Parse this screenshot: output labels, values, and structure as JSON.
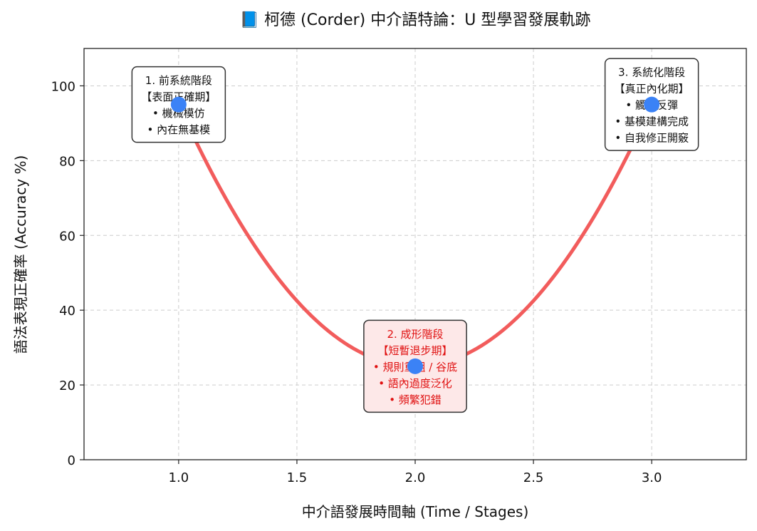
{
  "chart_data": {
    "type": "line",
    "title": "📘 柯德 (Corder) 中介語特論：U 型學習發展軌跡",
    "xlabel": "中介語發展時間軸 (Time / Stages)",
    "ylabel": "語法表現正確率 (Accuracy %)",
    "xlim": [
      0.6,
      3.4
    ],
    "ylim": [
      0,
      110
    ],
    "xticks": [
      1.0,
      1.5,
      2.0,
      2.5,
      3.0
    ],
    "xtick_labels": [
      "1.0",
      "1.5",
      "2.0",
      "2.5",
      "3.0"
    ],
    "yticks": [
      0,
      20,
      40,
      60,
      80,
      100
    ],
    "ytick_labels": [
      "0",
      "20",
      "40",
      "60",
      "80",
      "100"
    ],
    "grid": true,
    "grid_style": "dashed",
    "curve": {
      "x_range": [
        1.0,
        3.0
      ],
      "vertex": [
        2.0,
        25
      ],
      "endpoint_y": 95,
      "color": "#f25c5c"
    },
    "points": [
      {
        "x": 1.0,
        "y": 95
      },
      {
        "x": 2.0,
        "y": 25
      },
      {
        "x": 3.0,
        "y": 95
      }
    ],
    "point_color": "#3b82f6",
    "annotations": [
      {
        "x": 1.0,
        "y": 95,
        "lines": [
          "1. 前系統階段",
          "【表面正確期】",
          "• 機械模仿",
          "• 內在無基模"
        ],
        "text_color": "#111111",
        "fill": "#ffffff"
      },
      {
        "x": 2.0,
        "y": 25,
        "lines": [
          "2. 成形階段",
          "【短暫退步期】",
          "• 規則重組 / 谷底",
          "• 語內過度泛化",
          "• 頻繁犯錯"
        ],
        "text_color": "#e01010",
        "fill": "#fde8e8"
      },
      {
        "x": 3.0,
        "y": 95,
        "lines": [
          "3. 系統化階段",
          "【真正內化期】",
          "• 觸底反彈",
          "• 基模建構完成",
          "• 自我修正開竅"
        ],
        "text_color": "#111111",
        "fill": "#ffffff"
      }
    ]
  }
}
